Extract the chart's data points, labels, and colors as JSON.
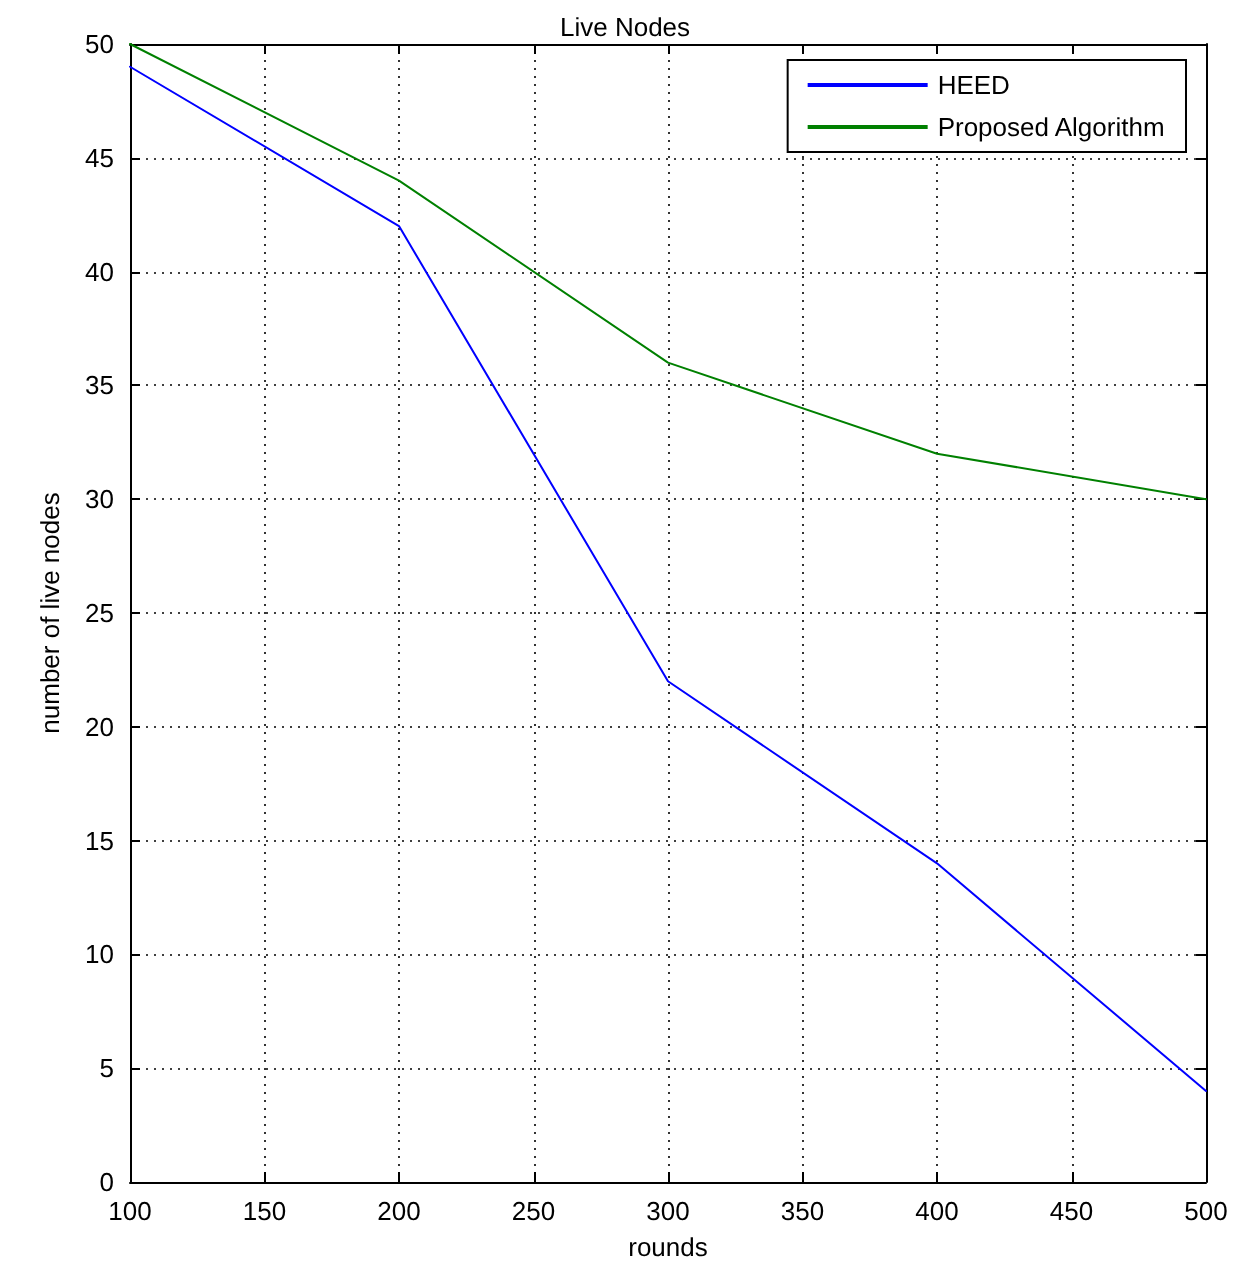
{
  "chart_data": {
    "type": "line",
    "title": "Live Nodes",
    "xlabel": "rounds",
    "ylabel": "number of live nodes",
    "x": [
      100,
      200,
      300,
      400,
      500
    ],
    "series": [
      {
        "name": "HEED",
        "color": "#0000ff",
        "values": [
          49,
          42,
          22,
          14,
          4
        ]
      },
      {
        "name": "Proposed Algorithm",
        "color": "#008000",
        "values": [
          50,
          44,
          36,
          32,
          30
        ]
      }
    ],
    "xlim": [
      100,
      500
    ],
    "xticks": [
      100,
      150,
      200,
      250,
      300,
      350,
      400,
      450,
      500
    ],
    "ylim": [
      0,
      50
    ],
    "yticks": [
      0,
      5,
      10,
      15,
      20,
      25,
      30,
      35,
      40,
      45,
      50
    ],
    "grid": true,
    "legend": "top right",
    "marker": "none",
    "line_style": "solid"
  }
}
